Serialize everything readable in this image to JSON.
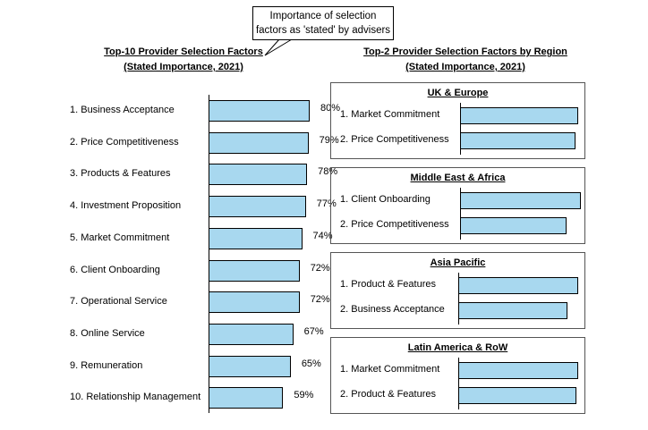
{
  "callout": {
    "line1": "Importance of selection",
    "line2": "factors as 'stated' by advisers"
  },
  "chart_data": [
    {
      "type": "bar",
      "orientation": "horizontal",
      "title": "Top-10 Provider Selection Factors",
      "subtitle": "(Stated Importance, 2021)",
      "categories": [
        "1. Business Acceptance",
        "2. Price Competitiveness",
        "3. Products & Features",
        "4. Investment Proposition",
        "5. Market Commitment",
        "6. Client Onboarding",
        "7. Operational Service",
        "8. Online Service",
        "9. Remuneration",
        "10. Relationship Management"
      ],
      "values": [
        80,
        79,
        78,
        77,
        74,
        72,
        72,
        67,
        65,
        59
      ],
      "value_labels": [
        "80%",
        "79%",
        "78%",
        "77%",
        "74%",
        "72%",
        "72%",
        "67%",
        "65%",
        "59%"
      ],
      "xlim": [
        0,
        100
      ],
      "bar_color": "#a8d8ef"
    },
    {
      "type": "bar",
      "orientation": "horizontal",
      "title": "Top-2 Provider Selection Factors by Region",
      "subtitle": "(Stated Importance, 2021)",
      "xlim": [
        0,
        100
      ],
      "bar_color": "#a8d8ef",
      "panels": [
        {
          "region": "UK & Europe",
          "categories": [
            "1. Market Commitment",
            "2. Price Competitiveness"
          ],
          "values": [
            80,
            78
          ]
        },
        {
          "region": "Middle East & Africa",
          "categories": [
            "1. Client Onboarding",
            "2. Price Competitiveness"
          ],
          "values": [
            82,
            72
          ]
        },
        {
          "region": "Asia Pacific",
          "categories": [
            "1. Product & Features",
            "2. Business Acceptance"
          ],
          "values": [
            81,
            74
          ]
        },
        {
          "region": "Latin America & RoW",
          "categories": [
            "1. Market Commitment",
            "2. Product & Features"
          ],
          "values": [
            81,
            80
          ]
        }
      ]
    }
  ]
}
